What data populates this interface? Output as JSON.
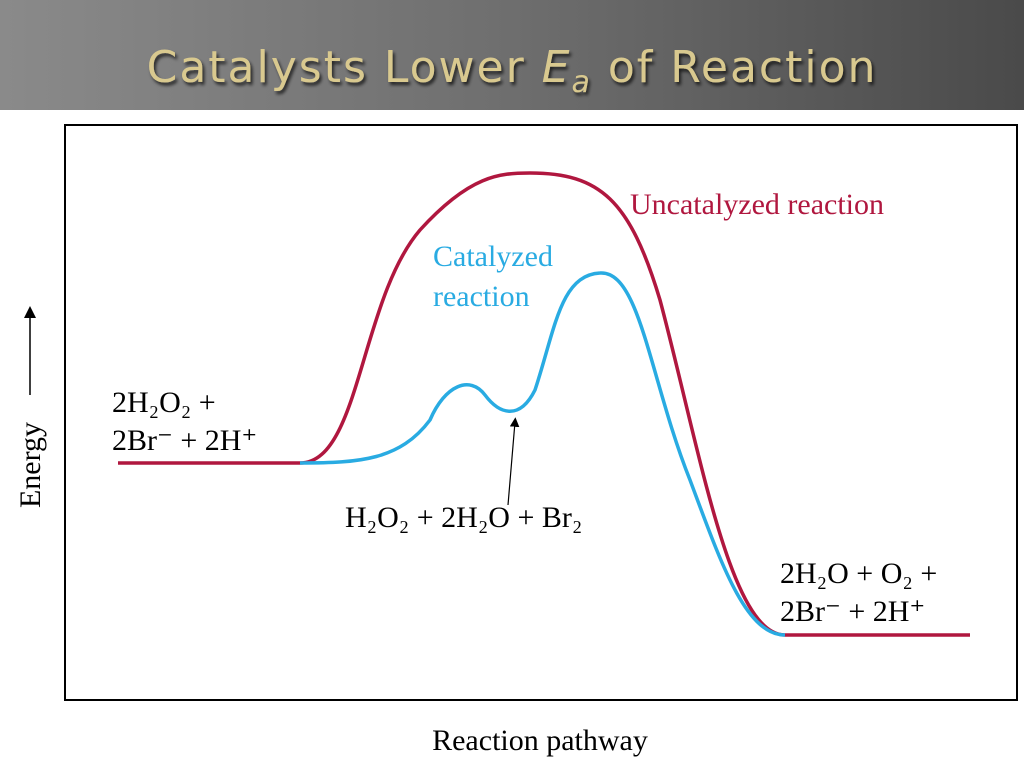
{
  "header": {
    "title": {
      "before": "Catalysts Lower",
      "symbol": "E",
      "subscript": "a",
      "after": "of Reaction"
    }
  },
  "diagram": {
    "axis_y_label": "Energy",
    "axis_x_label": "Reaction pathway",
    "curves": [
      {
        "label": "Uncatalyzed reaction"
      },
      {
        "label": [
          "Catalyzed",
          "reaction"
        ]
      }
    ],
    "reactants": [
      "2H₂O₂ +",
      "2Br⁻ + 2H⁺"
    ],
    "intermediate": "H₂O₂ + 2H₂O + Br₂",
    "products": [
      "2H₂O + O₂  +",
      "2Br⁻ + 2H⁺"
    ]
  }
}
